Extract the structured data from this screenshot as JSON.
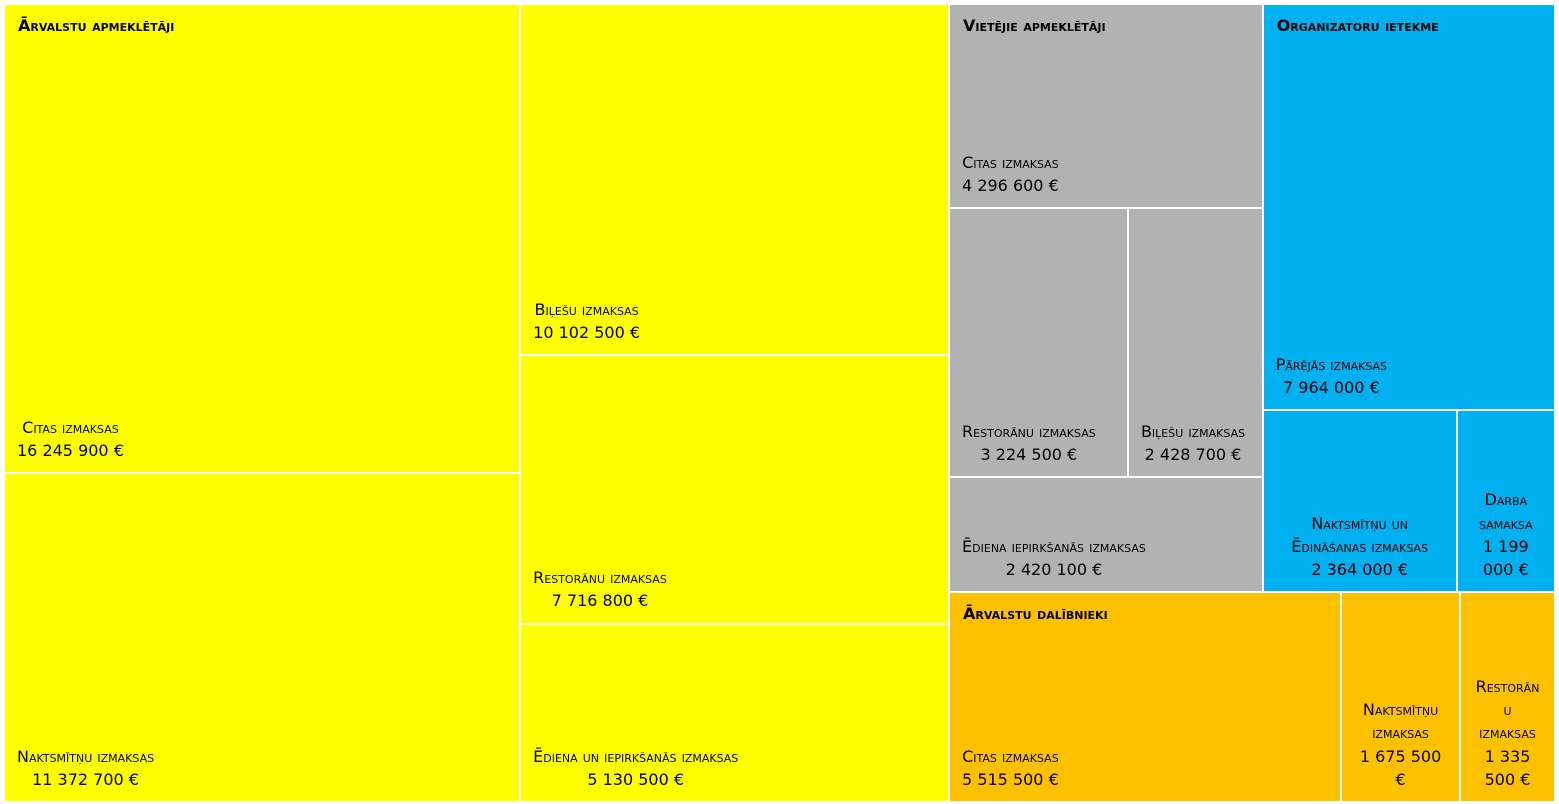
{
  "chart_data": {
    "type": "treemap",
    "series": [
      {
        "name": "Ārvalstu apmeklētāji",
        "color": "#ffff00",
        "categories": [
          "Citas izmaksas",
          "Naktsmītņu izmaksas",
          "Biļešu izmaksas",
          "Restorānu izmaksas",
          "Ēdiena un iepirkšanās izmaksas"
        ],
        "values": [
          16245900,
          11372700,
          10102500,
          7716800,
          5130500
        ],
        "value_labels": [
          "16 245 900 €",
          "11 372 700 €",
          "10 102 500 €",
          "7 716 800 €",
          "5 130 500 €"
        ]
      },
      {
        "name": "Vietējie apmeklētāji",
        "color": "#b2b2b2",
        "categories": [
          "Citas izmaksas",
          "Restorānu izmaksas",
          "Biļešu izmaksas",
          "Ēdiena iepirkšanās izmaksas"
        ],
        "values": [
          4296600,
          3224500,
          2428700,
          2420100
        ],
        "value_labels": [
          "4 296 600 €",
          "3 224 500 €",
          "2 428 700 €",
          "2 420 100 €"
        ]
      },
      {
        "name": "Organizatoru ietekme",
        "color": "#00b0f0",
        "categories": [
          "Pārējās izmaksas",
          "Naktsmītņu un Ēdināšanas izmaksas",
          "Darba samaksa"
        ],
        "values": [
          7964000,
          2364000,
          1199000
        ],
        "value_labels": [
          "7 964 000 €",
          "2 364 000 €",
          "1 199 000 €"
        ]
      },
      {
        "name": "Ārvalstu dalībnieki",
        "color": "#ffc000",
        "categories": [
          "Citas izmaksas",
          "Naktsmītņu izmaksas",
          "Restorānu izmaksas"
        ],
        "values": [
          5515500,
          1675500,
          1335500
        ],
        "value_labels": [
          "5 515 500 €",
          "1 675 500 €",
          "1 335 500 €"
        ]
      }
    ]
  }
}
